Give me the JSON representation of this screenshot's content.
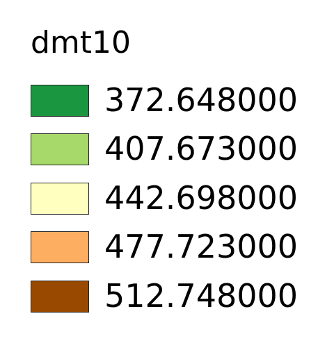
{
  "legend": {
    "title": "dmt10",
    "entries": [
      {
        "label": "372.648000",
        "color": "#1a9641"
      },
      {
        "label": "407.673000",
        "color": "#a6d96a"
      },
      {
        "label": "442.698000",
        "color": "#ffffc0"
      },
      {
        "label": "477.723000",
        "color": "#fdae61"
      },
      {
        "label": "512.748000",
        "color": "#9a4a00"
      }
    ]
  }
}
